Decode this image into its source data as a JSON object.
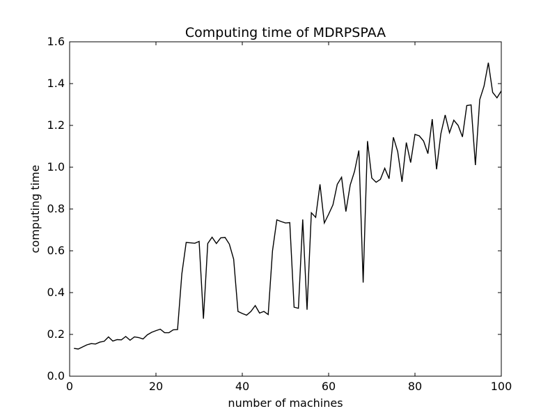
{
  "chart_data": {
    "type": "line",
    "title": "Computing time of MDRPSPAA",
    "xlabel": "number of machines",
    "ylabel": "computing time",
    "xlim": [
      0,
      100
    ],
    "ylim": [
      0.0,
      1.6
    ],
    "xticks": [
      0,
      20,
      40,
      60,
      80,
      100
    ],
    "xtick_labels": [
      "0",
      "20",
      "40",
      "60",
      "80",
      "100"
    ],
    "yticks": [
      0.0,
      0.2,
      0.4,
      0.6,
      0.8,
      1.0,
      1.2,
      1.4,
      1.6
    ],
    "ytick_labels": [
      "0.0",
      "0.2",
      "0.4",
      "0.6",
      "0.8",
      "1.0",
      "1.2",
      "1.4",
      "1.6"
    ],
    "grid": false,
    "legend": "none",
    "line_color": "#000000",
    "series": [
      {
        "x": [
          1,
          2,
          3,
          4,
          5,
          6,
          7,
          8,
          9,
          10,
          11,
          12,
          13,
          14,
          15,
          16,
          17,
          18,
          19,
          20,
          21,
          22,
          23,
          24,
          25,
          26,
          27,
          28,
          29,
          30,
          31,
          32,
          33,
          34,
          35,
          36,
          37,
          38,
          39,
          40,
          41,
          42,
          43,
          44,
          45,
          46,
          47,
          48,
          49,
          50,
          51,
          52,
          53,
          54,
          55,
          56,
          57,
          58,
          59,
          60,
          61,
          62,
          63,
          64,
          65,
          66,
          67,
          68,
          69,
          70,
          71,
          72,
          73,
          74,
          75,
          76,
          77,
          78,
          79,
          80,
          81,
          82,
          83,
          84,
          85,
          86,
          87,
          88,
          89,
          90,
          91,
          92,
          93,
          94,
          95,
          96,
          97,
          98,
          99,
          100
        ],
        "values": [
          0.133,
          0.13,
          0.14,
          0.15,
          0.156,
          0.154,
          0.163,
          0.167,
          0.188,
          0.168,
          0.175,
          0.174,
          0.19,
          0.172,
          0.188,
          0.185,
          0.178,
          0.198,
          0.21,
          0.218,
          0.225,
          0.208,
          0.208,
          0.222,
          0.223,
          0.49,
          0.64,
          0.638,
          0.636,
          0.645,
          0.275,
          0.635,
          0.665,
          0.635,
          0.662,
          0.664,
          0.632,
          0.56,
          0.31,
          0.3,
          0.292,
          0.31,
          0.338,
          0.302,
          0.31,
          0.295,
          0.6,
          0.748,
          0.74,
          0.733,
          0.735,
          0.33,
          0.325,
          0.75,
          0.318,
          0.782,
          0.76,
          0.918,
          0.733,
          0.775,
          0.82,
          0.918,
          0.952,
          0.788,
          0.915,
          0.98,
          1.08,
          0.448,
          1.125,
          0.948,
          0.928,
          0.942,
          0.995,
          0.945,
          1.143,
          1.075,
          0.93,
          1.118,
          1.022,
          1.157,
          1.15,
          1.125,
          1.065,
          1.23,
          0.99,
          1.16,
          1.25,
          1.165,
          1.225,
          1.2,
          1.145,
          1.295,
          1.298,
          1.01,
          1.323,
          1.388,
          1.5,
          1.358,
          1.332,
          1.365
        ]
      }
    ]
  }
}
